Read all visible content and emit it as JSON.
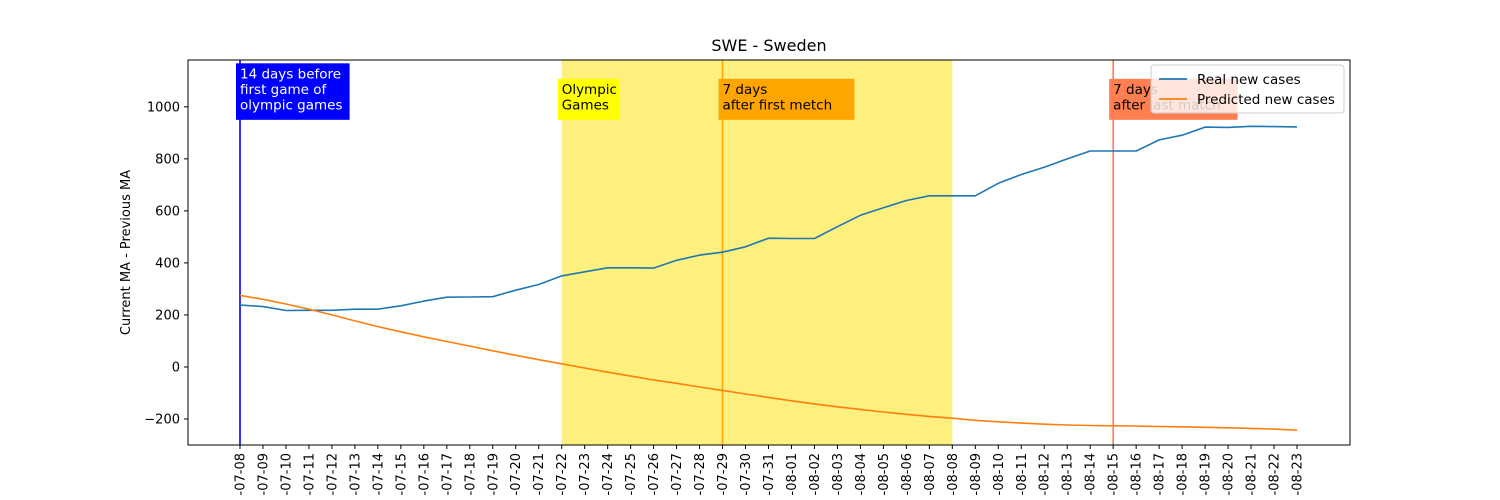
{
  "chart_data": {
    "type": "line",
    "title": "SWE - Sweden",
    "xlabel": "",
    "ylabel": "Current MA - Previous MA",
    "ylim": [
      -300,
      1180
    ],
    "yticks": [
      -200,
      0,
      200,
      400,
      600,
      800,
      1000
    ],
    "grid": false,
    "legend_position": "top-right",
    "categories": [
      "-07-08",
      "-07-09",
      "-07-10",
      "-07-11",
      "-07-12",
      "-07-13",
      "-07-14",
      "-07-15",
      "-07-16",
      "-07-17",
      "-07-18",
      "-07-19",
      "-07-20",
      "-07-21",
      "-07-22",
      "-07-23",
      "-07-24",
      "-07-25",
      "-07-26",
      "-07-27",
      "-07-28",
      "-07-29",
      "-07-30",
      "-07-31",
      "-08-01",
      "-08-02",
      "-08-03",
      "-08-04",
      "-08-05",
      "-08-06",
      "-08-07",
      "-08-08",
      "-08-09",
      "-08-10",
      "-08-11",
      "-08-12",
      "-08-13",
      "-08-14",
      "-08-15",
      "-08-16",
      "-08-17",
      "-08-18",
      "-08-19",
      "-08-20",
      "-08-21",
      "-08-22",
      "-08-23"
    ],
    "series": [
      {
        "name": "Real new cases",
        "color": "#1f77b4",
        "values": [
          238,
          232,
          217,
          218,
          218,
          222,
          222,
          235,
          253,
          268,
          269,
          270,
          295,
          317,
          350,
          366,
          381,
          381,
          380,
          410,
          430,
          441,
          462,
          495,
          494,
          494,
          539,
          583,
          612,
          640,
          658,
          658,
          658,
          706,
          740,
          768,
          800,
          830,
          830,
          830,
          873,
          891,
          922,
          921,
          925,
          924,
          923
        ]
      },
      {
        "name": "Predicted new cases",
        "color": "#ff7f0e",
        "values": [
          275,
          260,
          242,
          222,
          200,
          177,
          155,
          135,
          116,
          98,
          80,
          62,
          45,
          28,
          12,
          -4,
          -20,
          -35,
          -50,
          -63,
          -77,
          -90,
          -104,
          -117,
          -130,
          -142,
          -153,
          -163,
          -173,
          -182,
          -190,
          -197,
          -205,
          -211,
          -216,
          -220,
          -223,
          -225,
          -226,
          -227,
          -229,
          -230,
          -232,
          -234,
          -236,
          -239,
          -243
        ]
      }
    ],
    "shaded_regions": [
      {
        "from": "-07-22",
        "to": "-08-08",
        "color": "#fdf07f"
      }
    ],
    "vertical_lines": [
      {
        "at": "-07-08",
        "color": "#0000ff"
      },
      {
        "at": "-07-29",
        "color": "#ffa500"
      },
      {
        "at": "-08-15",
        "color": "#ff7f50"
      }
    ],
    "annotations": [
      {
        "at": "-07-08",
        "lines": [
          "14 days before",
          "first game of",
          "olympic games"
        ],
        "bg": "#0000ff",
        "fg": "#ffffff"
      },
      {
        "at": "-07-22",
        "lines": [
          "Olympic",
          "Games"
        ],
        "bg": "#ffff00",
        "fg": "#000000"
      },
      {
        "at": "-07-29",
        "lines": [
          "7 days",
          "after first metch"
        ],
        "bg": "#ffa500",
        "fg": "#000000"
      },
      {
        "at": "-08-15",
        "lines": [
          "7 days",
          "after last match"
        ],
        "bg": "#ff7f50",
        "fg": "#000000"
      }
    ]
  }
}
